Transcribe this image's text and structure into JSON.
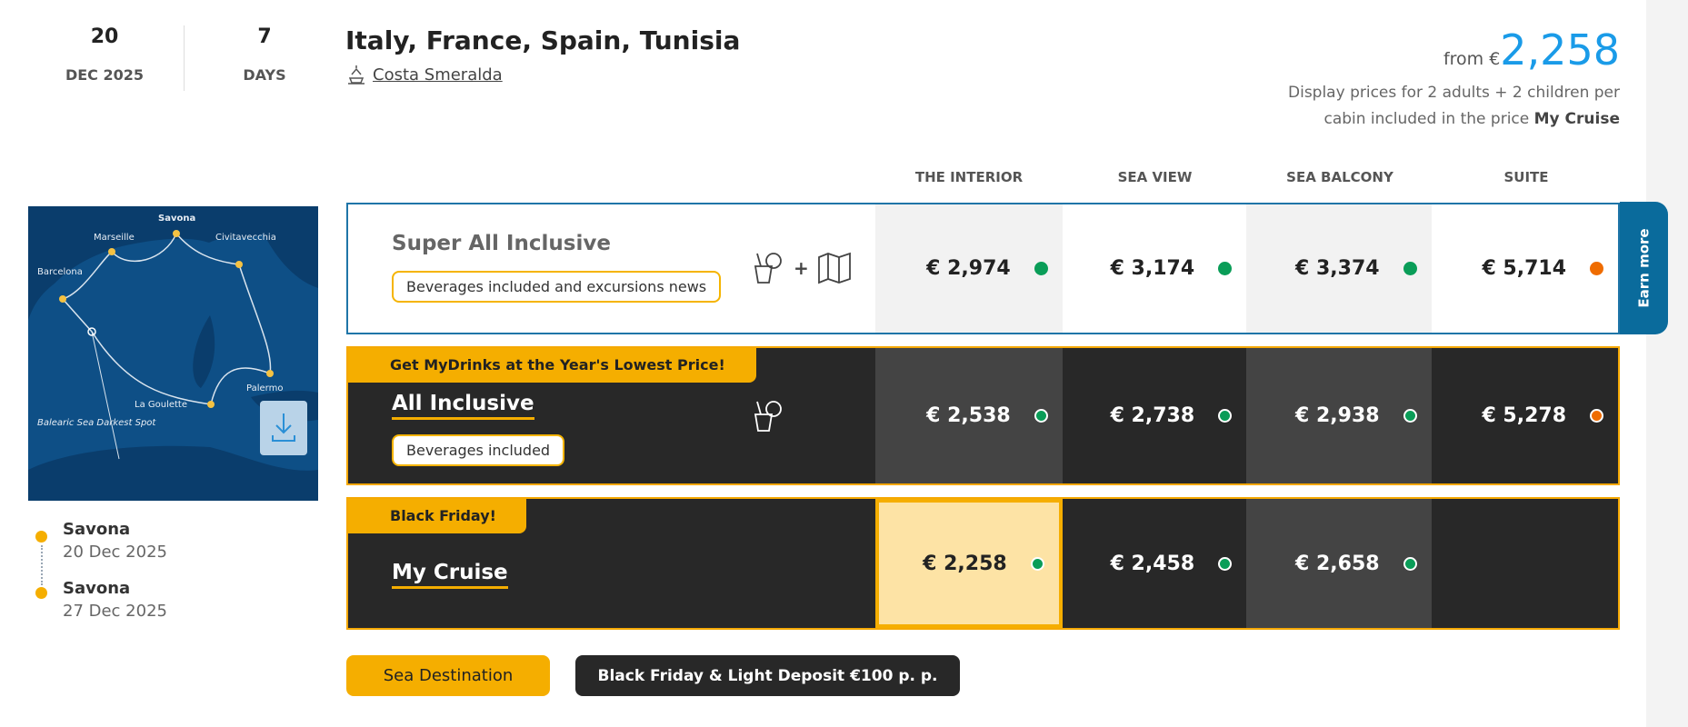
{
  "departure": {
    "day": "20",
    "month_year": "DEC 2025"
  },
  "duration": {
    "value": "7",
    "unit": "DAYS"
  },
  "title": "Italy, France, Spain, Tunisia",
  "ship": {
    "name": "Costa Smeralda",
    "icon": "ship-icon"
  },
  "price_summary": {
    "from_label": "from €",
    "amount": "2,258",
    "note_prefix": "Display prices for 2 adults + 2 children per cabin included in the price",
    "note_bold": "My Cruise"
  },
  "columns": [
    "THE INTERIOR",
    "SEA VIEW",
    "SEA BALCONY",
    "SUITE"
  ],
  "packages": [
    {
      "name": "Super All Inclusive",
      "badge": "Beverages included and excursions news",
      "icons": [
        "drink-icon",
        "plus",
        "map-icon"
      ],
      "prices": [
        {
          "value": "€  2,974",
          "status": "green"
        },
        {
          "value": "€  3,174",
          "status": "green"
        },
        {
          "value": "€  3,374",
          "status": "green"
        },
        {
          "value": "€  5,714",
          "status": "orange"
        }
      ]
    },
    {
      "banner": "Get MyDrinks at the Year's Lowest Price!",
      "name": "All Inclusive",
      "badge": "Beverages included",
      "icons": [
        "drink-icon"
      ],
      "prices": [
        {
          "value": "€  2,538",
          "status": "green"
        },
        {
          "value": "€  2,738",
          "status": "green"
        },
        {
          "value": "€  2,938",
          "status": "green"
        },
        {
          "value": "€  5,278",
          "status": "orange"
        }
      ]
    },
    {
      "banner": "Black Friday!",
      "name": "My Cruise",
      "prices": [
        {
          "value": "€  2,258",
          "status": "green",
          "selected": true
        },
        {
          "value": "€  2,458",
          "status": "green"
        },
        {
          "value": "€  2,658",
          "status": "green"
        }
      ]
    }
  ],
  "earn_more": "Earn more",
  "map": {
    "labels": [
      "Savona",
      "Marseille",
      "Civitavecchia",
      "Barcelona",
      "Palermo",
      "La Goulette",
      "Balearic Sea Darkest Spot"
    ]
  },
  "itinerary": [
    {
      "port": "Savona",
      "date": "20 Dec 2025"
    },
    {
      "port": "Savona",
      "date": "27 Dec 2025"
    }
  ],
  "tags": {
    "primary": "Sea Destination",
    "secondary": "Black Friday & Light Deposit €100 p. p."
  },
  "colors": {
    "accent": "#f5ae00",
    "price_blue": "#1a9be8",
    "green": "#0a9d58",
    "orange": "#ef6c00",
    "earn_more": "#0a6b9c",
    "dark": "#282828"
  }
}
